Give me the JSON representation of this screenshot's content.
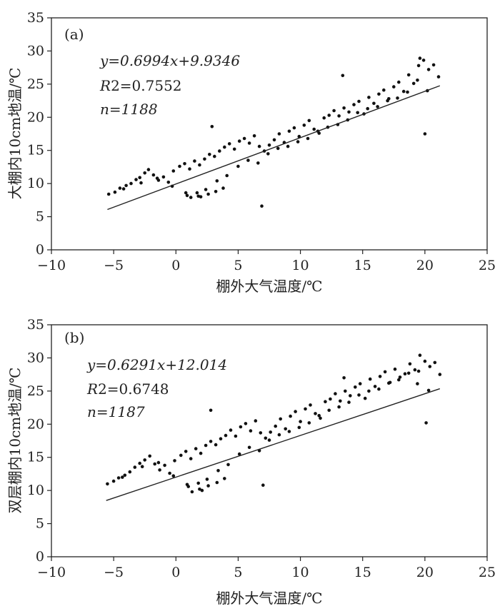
{
  "chart_data": [
    {
      "type": "scatter",
      "panel_label": "(a)",
      "xlabel": "棚外大气温度/℃",
      "ylabel": "大棚内10cm地温/℃",
      "xlim": [
        -10,
        25
      ],
      "ylim": [
        0,
        35
      ],
      "xticks": [
        -10,
        -5,
        0,
        5,
        10,
        15,
        20,
        25
      ],
      "yticks": [
        0,
        5,
        10,
        15,
        20,
        25,
        30,
        35
      ],
      "annotations": {
        "equation": "y=0.6994x+9.9346",
        "r2_prefix": "R",
        "r2_value": "2=0.7552",
        "n": "n=1188"
      },
      "regression": {
        "slope": 0.6994,
        "intercept": 9.9346,
        "x_range": [
          -5.5,
          21.2
        ]
      },
      "series": [
        {
          "x": [
            -5.4,
            -4.9,
            -4.5,
            -4.0,
            -3.6,
            -3.2,
            -2.9,
            -2.5,
            -2.2,
            -1.8,
            -1.4,
            -1.0,
            -0.6,
            -0.2,
            0.3,
            0.7,
            1.1,
            1.5,
            1.9,
            2.3,
            2.7,
            3.1,
            3.5,
            3.9,
            4.3,
            4.7,
            5.1,
            5.5,
            5.9,
            6.3,
            6.7,
            7.1,
            7.5,
            7.9,
            8.3,
            8.7,
            9.1,
            9.5,
            9.9,
            10.3,
            10.7,
            11.1,
            11.5,
            11.9,
            12.3,
            12.7,
            13.1,
            13.5,
            13.9,
            14.3,
            14.7,
            15.1,
            15.5,
            15.9,
            16.3,
            16.7,
            17.1,
            17.5,
            17.9,
            18.3,
            18.7,
            19.1,
            19.5,
            19.9,
            20.3,
            20.7,
            21.1,
            -4.2,
            -2.8,
            -1.5,
            -0.3,
            0.9,
            1.7,
            2.4,
            3.3,
            4.1,
            5.0,
            5.8,
            6.6,
            7.4,
            8.2,
            9.0,
            9.8,
            10.6,
            11.4,
            12.2,
            13.0,
            13.8,
            14.6,
            15.4,
            16.2,
            17.0,
            17.8,
            18.6,
            19.4,
            20.2,
            1.2,
            1.8,
            2.6,
            3.2,
            3.8,
            0.8,
            2.0,
            2.9,
            6.9,
            13.4,
            19.6,
            20.0
          ],
          "y": [
            8.4,
            8.7,
            9.3,
            9.7,
            10.0,
            10.6,
            10.9,
            11.6,
            12.1,
            11.3,
            10.5,
            11.0,
            10.2,
            11.9,
            12.6,
            13.0,
            12.2,
            13.4,
            12.8,
            13.7,
            14.4,
            14.1,
            14.9,
            15.5,
            16.0,
            15.2,
            16.4,
            16.8,
            16.1,
            17.2,
            15.6,
            14.9,
            15.8,
            16.6,
            17.5,
            16.2,
            17.9,
            18.4,
            17.1,
            18.8,
            19.5,
            18.2,
            17.6,
            19.9,
            20.3,
            21.0,
            20.2,
            21.4,
            20.8,
            21.9,
            22.4,
            20.5,
            23.0,
            22.1,
            23.5,
            24.1,
            22.8,
            24.6,
            25.3,
            23.9,
            26.4,
            25.1,
            27.8,
            28.6,
            27.2,
            27.9,
            26.1,
            9.2,
            10.1,
            10.8,
            9.6,
            8.2,
            8.6,
            9.1,
            10.4,
            11.2,
            12.6,
            13.5,
            13.1,
            14.5,
            15.3,
            15.6,
            16.3,
            16.8,
            17.9,
            18.5,
            18.9,
            19.6,
            20.7,
            21.3,
            21.6,
            22.5,
            22.9,
            23.8,
            25.6,
            24.0,
            7.9,
            8.1,
            8.4,
            8.8,
            9.3,
            8.6,
            8.0,
            18.6,
            6.6,
            26.3,
            28.9,
            17.5
          ]
        }
      ]
    },
    {
      "type": "scatter",
      "panel_label": "(b)",
      "xlabel": "棚外大气温度/℃",
      "ylabel": "双层棚内10cm地温/℃",
      "xlim": [
        -10,
        25
      ],
      "ylim": [
        0,
        35
      ],
      "xticks": [
        -10,
        -5,
        0,
        5,
        10,
        15,
        20,
        25
      ],
      "yticks": [
        0,
        5,
        10,
        15,
        20,
        25,
        30,
        35
      ],
      "annotations": {
        "equation": "y=0.6291x+12.014",
        "r2_prefix": "R",
        "r2_value": "2=0.6748",
        "n": "n=1187"
      },
      "regression": {
        "slope": 0.6291,
        "intercept": 12.014,
        "x_range": [
          -5.6,
          21.2
        ]
      },
      "series": [
        {
          "x": [
            -5.5,
            -5.0,
            -4.6,
            -4.1,
            -3.7,
            -3.3,
            -2.9,
            -2.5,
            -2.1,
            -1.7,
            -1.3,
            -0.9,
            -0.5,
            -0.1,
            0.4,
            0.8,
            1.2,
            1.6,
            2.0,
            2.4,
            2.8,
            3.2,
            3.6,
            4.0,
            4.4,
            4.8,
            5.2,
            5.6,
            6.0,
            6.4,
            6.8,
            7.2,
            7.6,
            8.0,
            8.4,
            8.8,
            9.2,
            9.6,
            10.0,
            10.4,
            10.8,
            11.2,
            11.6,
            12.0,
            12.4,
            12.8,
            13.2,
            13.6,
            14.0,
            14.4,
            14.8,
            15.2,
            15.6,
            16.0,
            16.4,
            16.8,
            17.2,
            17.6,
            18.0,
            18.4,
            18.8,
            19.2,
            19.6,
            20.0,
            20.4,
            20.8,
            21.2,
            -4.3,
            -2.7,
            -1.4,
            -0.2,
            1.0,
            1.8,
            2.5,
            3.4,
            4.2,
            5.1,
            5.9,
            6.7,
            7.5,
            8.3,
            9.1,
            9.9,
            10.7,
            11.5,
            12.3,
            13.1,
            13.9,
            14.7,
            15.5,
            16.3,
            17.1,
            17.9,
            18.7,
            19.5,
            20.3,
            1.3,
            1.9,
            2.6,
            3.3,
            3.9,
            0.9,
            2.1,
            2.8,
            7.0,
            13.5,
            19.4,
            20.1
          ],
          "y": [
            11.0,
            11.4,
            11.9,
            12.3,
            12.8,
            13.5,
            14.1,
            14.6,
            15.2,
            14.0,
            13.1,
            13.8,
            12.6,
            14.5,
            15.3,
            15.9,
            14.8,
            16.3,
            15.6,
            16.8,
            17.4,
            16.9,
            17.8,
            18.3,
            19.1,
            18.2,
            19.6,
            20.1,
            19.0,
            20.5,
            18.7,
            17.9,
            18.8,
            19.7,
            20.8,
            19.3,
            21.2,
            21.9,
            20.4,
            22.3,
            22.9,
            21.6,
            20.9,
            23.4,
            23.8,
            24.6,
            23.5,
            25.0,
            24.3,
            25.6,
            26.1,
            23.9,
            26.8,
            25.7,
            27.2,
            27.9,
            26.3,
            28.3,
            27.1,
            27.6,
            29.1,
            28.2,
            30.4,
            29.5,
            28.7,
            29.3,
            27.5,
            12.0,
            13.6,
            14.2,
            12.2,
            10.6,
            11.1,
            11.7,
            13.0,
            13.9,
            15.5,
            16.5,
            16.0,
            17.6,
            18.4,
            18.9,
            19.5,
            20.2,
            21.3,
            22.1,
            22.6,
            23.3,
            24.4,
            25.0,
            25.3,
            26.2,
            26.7,
            27.7,
            28.0,
            25.1,
            9.8,
            10.2,
            10.7,
            11.2,
            11.8,
            10.9,
            10.0,
            22.1,
            10.8,
            27.0,
            26.1,
            20.2
          ]
        }
      ]
    }
  ]
}
